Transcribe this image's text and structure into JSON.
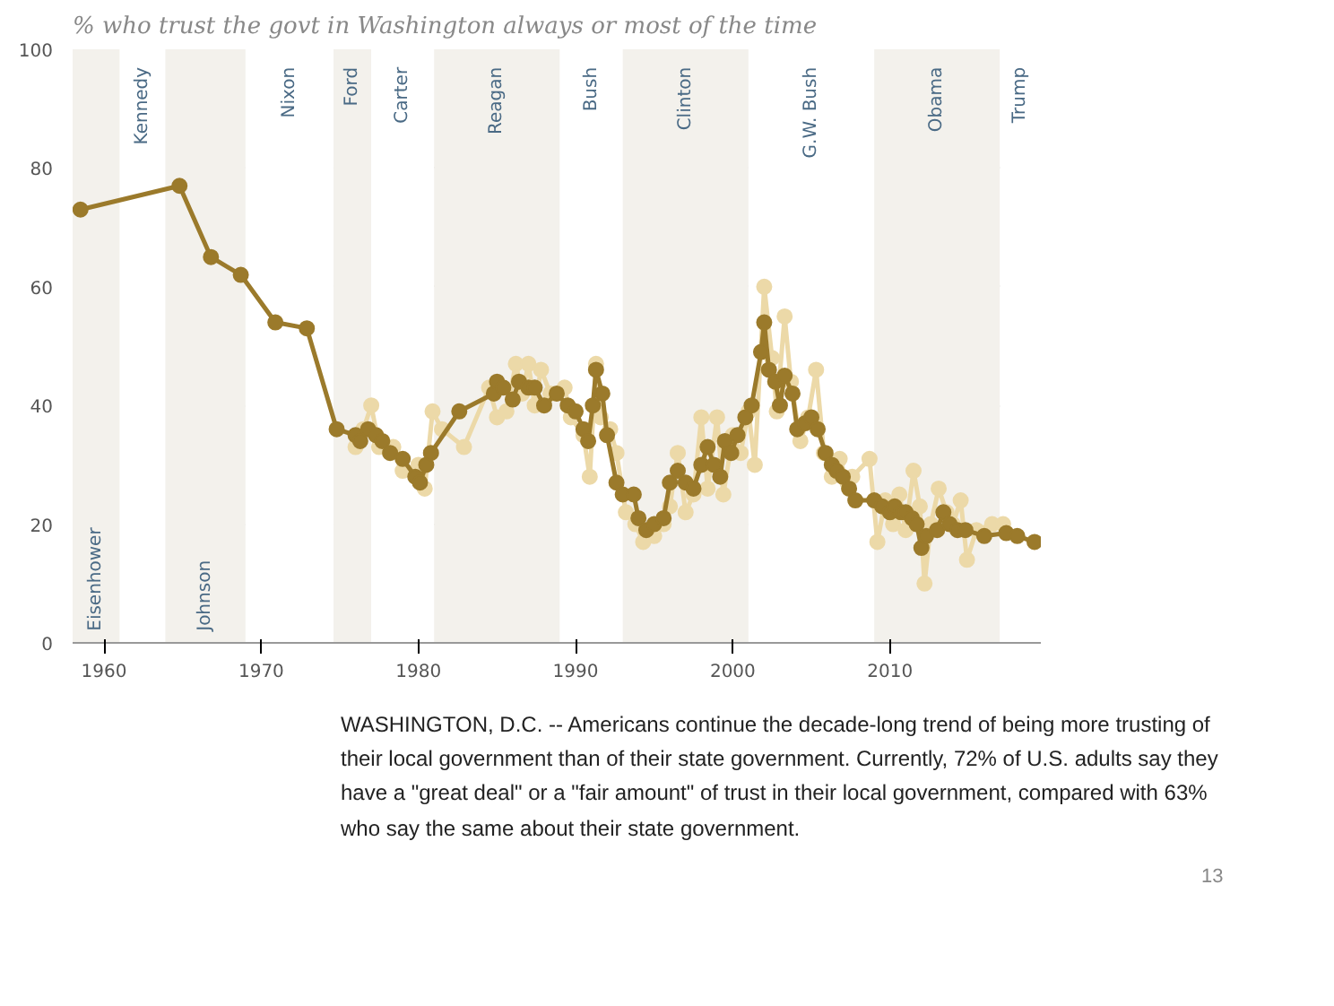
{
  "chart_data": {
    "type": "line",
    "title": "% who trust the govt in Washington always or most of the time",
    "xlim": [
      1958,
      2019.6
    ],
    "xticks": [
      1960,
      1970,
      1980,
      1990,
      2000,
      2010
    ],
    "ylim": [
      0,
      100
    ],
    "yticks": [
      0,
      20,
      40,
      60,
      80,
      100
    ],
    "grid": "y",
    "marker": "circle",
    "line_style": "solid",
    "series": [
      {
        "color": "#ecd9a8",
        "x": [
          1976,
          1976.5,
          1977,
          1977.5,
          1978.4,
          1979,
          1980,
          1980.4,
          1980.9,
          1981.5,
          1982.9,
          1984.5,
          1985,
          1985.6,
          1986.2,
          1986.6,
          1987,
          1987.4,
          1987.8,
          1988.4,
          1989.3,
          1989.7,
          1990.5,
          1990.9,
          1991.3,
          1991.6,
          1992.2,
          1992.6,
          1993.2,
          1993.8,
          1994.3,
          1995,
          1995.6,
          1996,
          1996.5,
          1997,
          1997.5,
          1998,
          1998.4,
          1999,
          1999.4,
          2000,
          2000.5,
          2001,
          2001.4,
          2002,
          2002.5,
          2002.8,
          2003.3,
          2003.7,
          2004.3,
          2004.8,
          2005.3,
          2005.8,
          2006.3,
          2006.8,
          2007.3,
          2007.6,
          2008.7,
          2009.2,
          2009.7,
          2010.2,
          2010.6,
          2011,
          2011.5,
          2011.9,
          2012.2,
          2012.6,
          2013.1,
          2013.6,
          2014,
          2014.5,
          2014.9,
          2015.5,
          2016.5,
          2017.2
        ],
        "values": [
          33,
          36,
          40,
          33,
          33,
          29,
          30,
          26,
          39,
          36,
          33,
          43,
          38,
          39,
          47,
          42,
          47,
          40,
          46,
          42,
          43,
          38,
          35,
          28,
          47,
          38,
          36,
          32,
          22,
          20,
          17,
          18,
          20,
          23,
          32,
          22,
          25,
          38,
          26,
          38,
          25,
          35,
          32,
          39,
          30,
          60,
          48,
          39,
          55,
          44,
          34,
          38,
          46,
          32,
          28,
          31,
          27,
          28,
          31,
          17,
          24,
          20,
          25,
          19,
          29,
          23,
          10,
          20,
          26,
          22,
          20,
          24,
          14,
          19,
          20,
          20
        ]
      },
      {
        "color": "#9b7a2b",
        "x": [
          1958.5,
          1964.8,
          1966.8,
          1968.7,
          1970.9,
          1972.9,
          1974.8,
          1976,
          1976.3,
          1976.8,
          1977.3,
          1977.7,
          1978.2,
          1979,
          1979.8,
          1980.1,
          1980.5,
          1980.8,
          1982.6,
          1984.8,
          1985,
          1985.4,
          1986,
          1986.4,
          1987,
          1987.4,
          1988,
          1988.8,
          1989.5,
          1990,
          1990.5,
          1990.8,
          1991.1,
          1991.3,
          1991.7,
          1992,
          1992.6,
          1993,
          1993.7,
          1994,
          1994.5,
          1995,
          1995.6,
          1996,
          1996.5,
          1997,
          1997.5,
          1998,
          1998.4,
          1998.8,
          1999.2,
          1999.5,
          1999.9,
          2000.3,
          2000.8,
          2001.2,
          2001.8,
          2002,
          2002.3,
          2002.7,
          2003,
          2003.3,
          2003.8,
          2004.1,
          2004.6,
          2005,
          2005.4,
          2005.9,
          2006.3,
          2006.6,
          2007,
          2007.4,
          2007.8,
          2009,
          2009.5,
          2010,
          2010.3,
          2010.7,
          2011,
          2011.4,
          2011.7,
          2012,
          2012.3,
          2013,
          2013.4,
          2013.8,
          2014.3,
          2014.8,
          2016,
          2017.4,
          2018.1,
          2019.2
        ],
        "values": [
          73,
          77,
          65,
          62,
          54,
          53,
          36,
          35,
          34,
          36,
          35,
          34,
          32,
          31,
          28,
          27,
          30,
          32,
          39,
          42,
          44,
          43,
          41,
          44,
          43,
          43,
          40,
          42,
          40,
          39,
          36,
          34,
          40,
          46,
          42,
          35,
          27,
          25,
          25,
          21,
          19,
          20,
          21,
          27,
          29,
          27,
          26,
          30,
          33,
          30,
          28,
          34,
          32,
          35,
          38,
          40,
          49,
          54,
          46,
          44,
          40,
          45,
          42,
          36,
          37,
          38,
          36,
          32,
          30,
          29,
          28,
          26,
          24,
          24,
          23,
          22,
          23,
          22,
          22,
          21,
          20,
          16,
          18,
          19,
          22,
          20,
          19,
          19,
          18,
          18.5,
          18,
          17
        ]
      }
    ],
    "bands": [
      {
        "axis": "x",
        "from": 1958,
        "to": 1961,
        "label": "Eisenhower",
        "color": "#f3f1ec"
      },
      {
        "axis": "x",
        "from": 1961,
        "to": 1963.9,
        "label": "Kennedy",
        "color": "#ffffff"
      },
      {
        "axis": "x",
        "from": 1963.9,
        "to": 1969,
        "label": "Johnson",
        "color": "#f3f1ec"
      },
      {
        "axis": "x",
        "from": 1969,
        "to": 1974.6,
        "label": "Nixon",
        "color": "#ffffff"
      },
      {
        "axis": "x",
        "from": 1974.6,
        "to": 1977,
        "label": "Ford",
        "color": "#f3f1ec"
      },
      {
        "axis": "x",
        "from": 1977,
        "to": 1981,
        "label": "Carter",
        "color": "#ffffff"
      },
      {
        "axis": "x",
        "from": 1981,
        "to": 1989,
        "label": "Reagan",
        "color": "#f3f1ec"
      },
      {
        "axis": "x",
        "from": 1989,
        "to": 1993,
        "label": "Bush",
        "color": "#ffffff"
      },
      {
        "axis": "x",
        "from": 1993,
        "to": 2001,
        "label": "Clinton",
        "color": "#f3f1ec"
      },
      {
        "axis": "x",
        "from": 2001,
        "to": 2009,
        "label": "G.W. Bush",
        "color": "#ffffff"
      },
      {
        "axis": "x",
        "from": 2009,
        "to": 2017,
        "label": "Obama",
        "color": "#f3f1ec"
      },
      {
        "axis": "x",
        "from": 2017,
        "to": 2019.6,
        "label": "Trump",
        "color": "#ffffff"
      }
    ],
    "annotations": [
      "WASHINGTON, D.C. -- Americans continue the decade-long trend of being more trusting of their local government than of their state government. Currently, 72% of U.S. adults say they have a \"great deal\" or a \"fair amount\" of trust in their local government, compared with 63% who say the same about their state government.",
      "13"
    ]
  }
}
